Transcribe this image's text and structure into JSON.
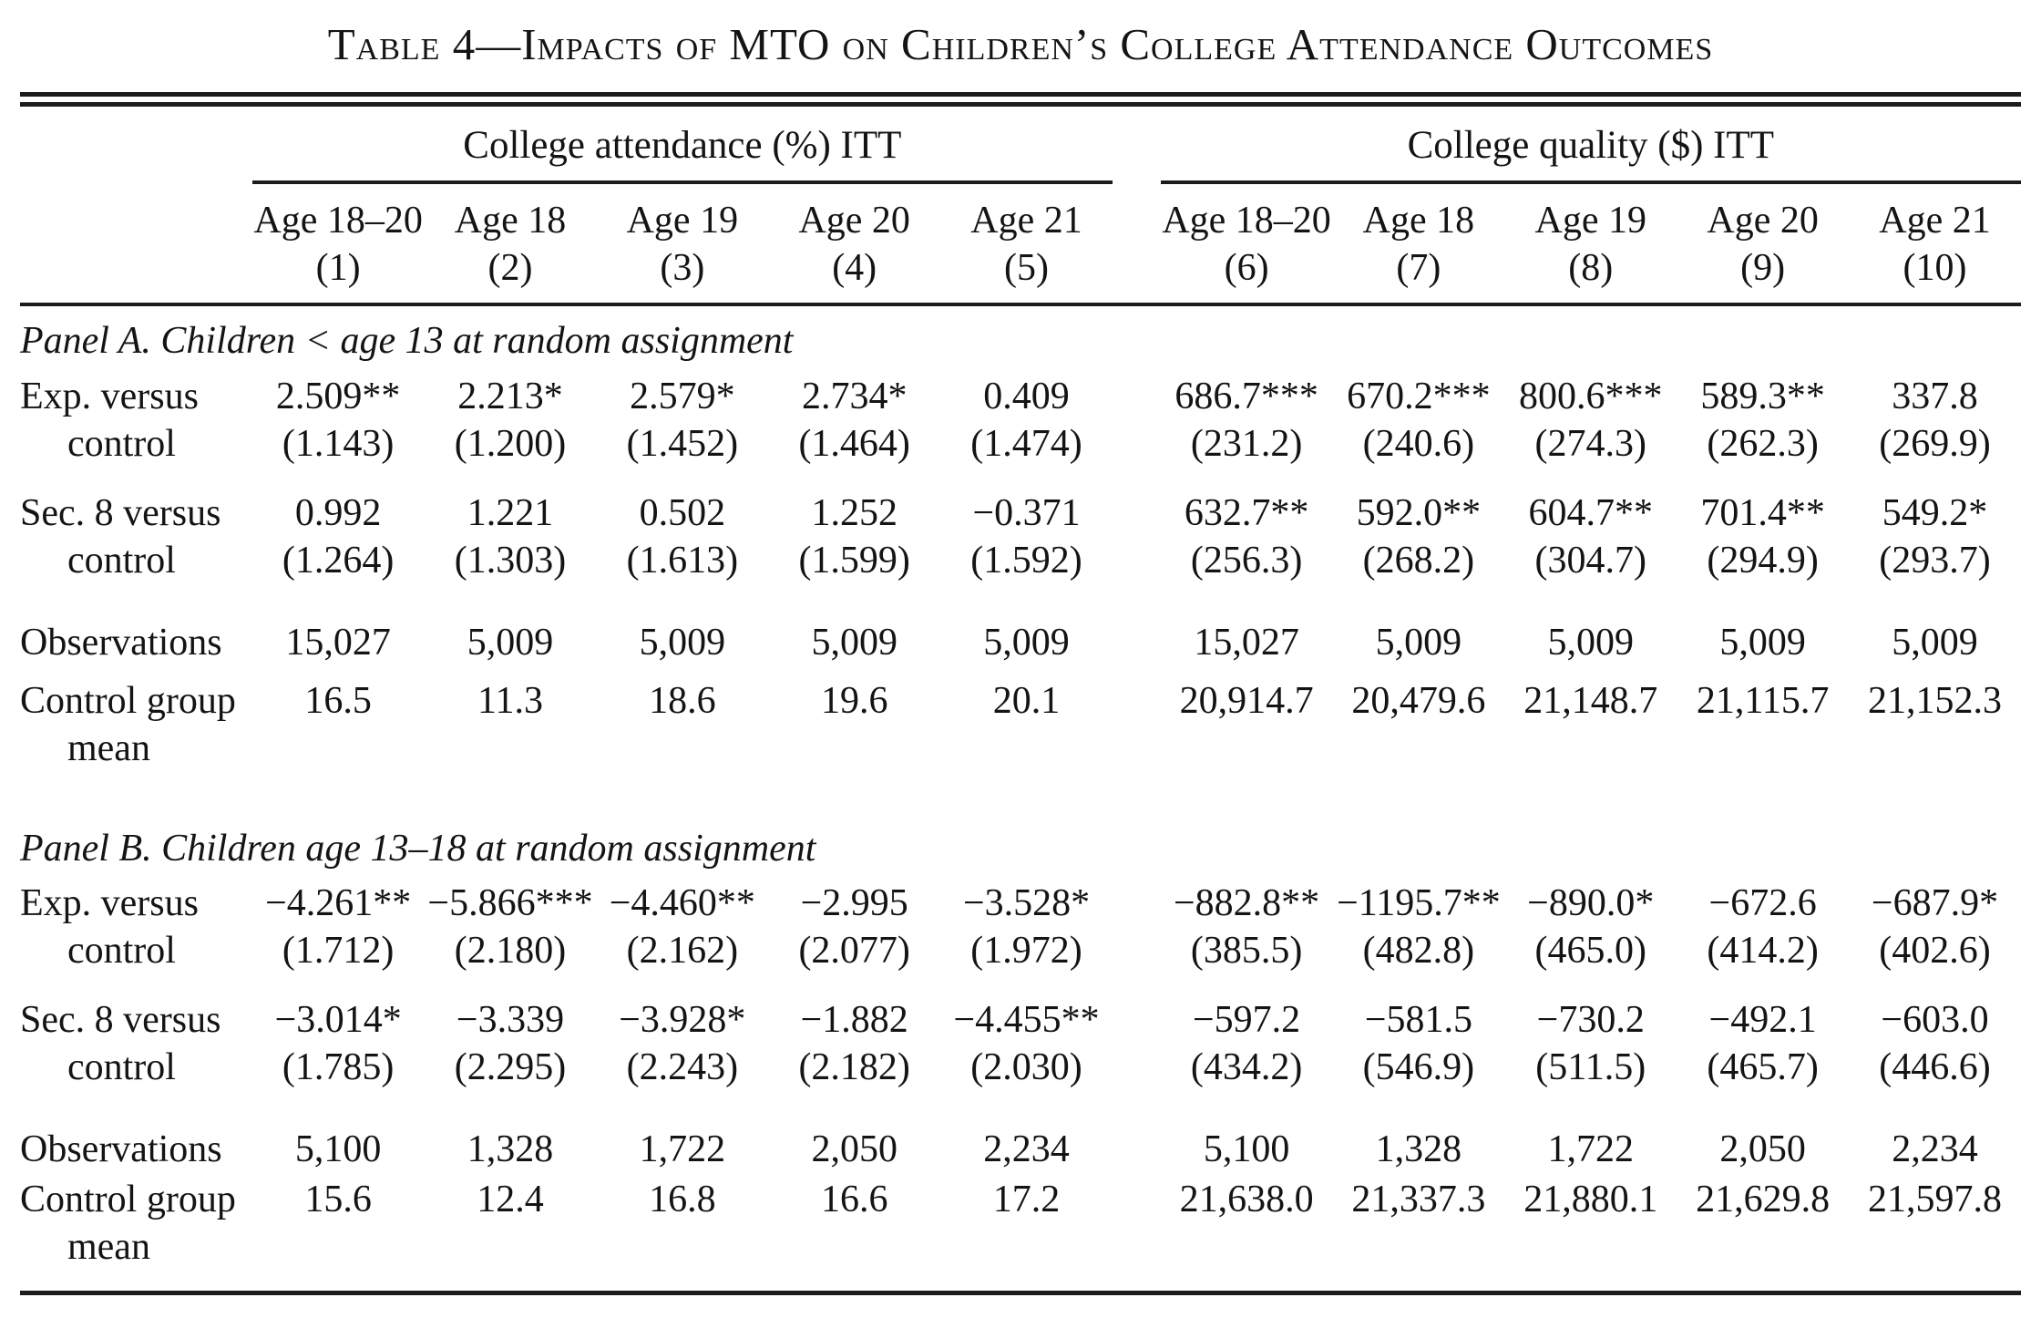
{
  "title": "Table 4—Impacts of MTO on Children’s College Attendance Outcomes",
  "group_attendance": "College attendance (%) ITT",
  "group_quality": "College quality ($) ITT",
  "columns": [
    {
      "age": "Age 18–20",
      "num": "(1)"
    },
    {
      "age": "Age 18",
      "num": "(2)"
    },
    {
      "age": "Age 19",
      "num": "(3)"
    },
    {
      "age": "Age 20",
      "num": "(4)"
    },
    {
      "age": "Age 21",
      "num": "(5)"
    },
    {
      "age": "Age 18–20",
      "num": "(6)"
    },
    {
      "age": "Age 18",
      "num": "(7)"
    },
    {
      "age": "Age 19",
      "num": "(8)"
    },
    {
      "age": "Age 20",
      "num": "(9)"
    },
    {
      "age": "Age 21",
      "num": "(10)"
    }
  ],
  "labels": {
    "exp_l1": "Exp. versus",
    "exp_l2": "control",
    "sec_l1": "Sec. 8 versus",
    "sec_l2": "control",
    "obs": "Observations",
    "mean_l1": "Control group",
    "mean_l2": "mean"
  },
  "panelA": {
    "title": "Panel A. Children < age 13 at random assignment",
    "exp": [
      {
        "est": "2.509**",
        "se": "(1.143)"
      },
      {
        "est": "2.213*",
        "se": "(1.200)"
      },
      {
        "est": "2.579*",
        "se": "(1.452)"
      },
      {
        "est": "2.734*",
        "se": "(1.464)"
      },
      {
        "est": "0.409",
        "se": "(1.474)"
      },
      {
        "est": "686.7***",
        "se": "(231.2)"
      },
      {
        "est": "670.2***",
        "se": "(240.6)"
      },
      {
        "est": "800.6***",
        "se": "(274.3)"
      },
      {
        "est": "589.3**",
        "se": "(262.3)"
      },
      {
        "est": "337.8",
        "se": "(269.9)"
      }
    ],
    "sec": [
      {
        "est": "0.992",
        "se": "(1.264)"
      },
      {
        "est": "1.221",
        "se": "(1.303)"
      },
      {
        "est": "0.502",
        "se": "(1.613)"
      },
      {
        "est": "1.252",
        "se": "(1.599)"
      },
      {
        "est": "−0.371",
        "se": "(1.592)"
      },
      {
        "est": "632.7**",
        "se": "(256.3)"
      },
      {
        "est": "592.0**",
        "se": "(268.2)"
      },
      {
        "est": "604.7**",
        "se": "(304.7)"
      },
      {
        "est": "701.4**",
        "se": "(294.9)"
      },
      {
        "est": "549.2*",
        "se": "(293.7)"
      }
    ],
    "obs": [
      "15,027",
      "5,009",
      "5,009",
      "5,009",
      "5,009",
      "15,027",
      "5,009",
      "5,009",
      "5,009",
      "5,009"
    ],
    "mean": [
      "16.5",
      "11.3",
      "18.6",
      "19.6",
      "20.1",
      "20,914.7",
      "20,479.6",
      "21,148.7",
      "21,115.7",
      "21,152.3"
    ]
  },
  "panelB": {
    "title": "Panel B. Children age 13–18 at random assignment",
    "exp": [
      {
        "est": "−4.261**",
        "se": "(1.712)"
      },
      {
        "est": "−5.866***",
        "se": "(2.180)"
      },
      {
        "est": "−4.460**",
        "se": "(2.162)"
      },
      {
        "est": "−2.995",
        "se": "(2.077)"
      },
      {
        "est": "−3.528*",
        "se": "(1.972)"
      },
      {
        "est": "−882.8**",
        "se": "(385.5)"
      },
      {
        "est": "−1195.7**",
        "se": "(482.8)"
      },
      {
        "est": "−890.0*",
        "se": "(465.0)"
      },
      {
        "est": "−672.6",
        "se": "(414.2)"
      },
      {
        "est": "−687.9*",
        "se": "(402.6)"
      }
    ],
    "sec": [
      {
        "est": "−3.014*",
        "se": "(1.785)"
      },
      {
        "est": "−3.339",
        "se": "(2.295)"
      },
      {
        "est": "−3.928*",
        "se": "(2.243)"
      },
      {
        "est": "−1.882",
        "se": "(2.182)"
      },
      {
        "est": "−4.455**",
        "se": "(2.030)"
      },
      {
        "est": "−597.2",
        "se": "(434.2)"
      },
      {
        "est": "−581.5",
        "se": "(546.9)"
      },
      {
        "est": "−730.2",
        "se": "(511.5)"
      },
      {
        "est": "−492.1",
        "se": "(465.7)"
      },
      {
        "est": "−603.0",
        "se": "(446.6)"
      }
    ],
    "obs": [
      "5,100",
      "1,328",
      "1,722",
      "2,050",
      "2,234",
      "5,100",
      "1,328",
      "1,722",
      "2,050",
      "2,234"
    ],
    "mean": [
      "15.6",
      "12.4",
      "16.8",
      "16.6",
      "17.2",
      "21,638.0",
      "21,337.3",
      "21,880.1",
      "21,629.8",
      "21,597.8"
    ]
  }
}
